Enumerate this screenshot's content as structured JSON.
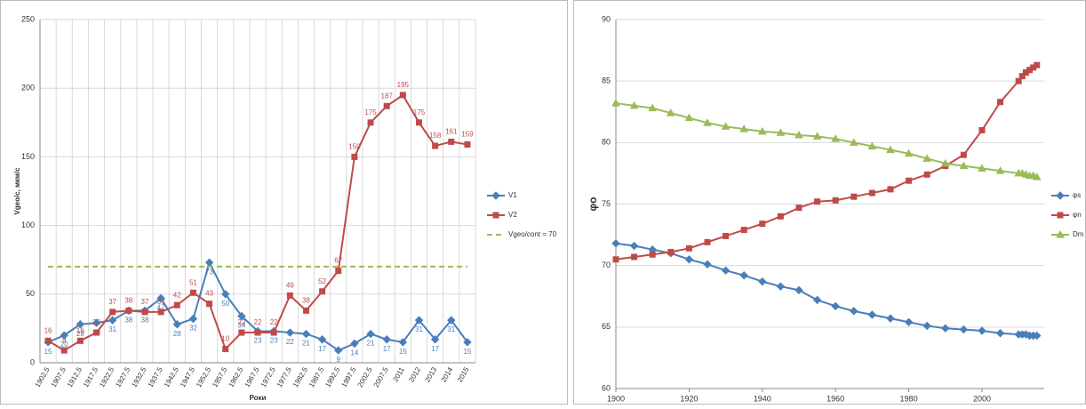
{
  "chart_data": [
    {
      "type": "line",
      "y_label": "Vgeo/c, мкм/с",
      "x_label": "Роки",
      "categories": [
        "1902,5",
        "1907,5",
        "1912,5",
        "1917,5",
        "1922,5",
        "1927,5",
        "1932,5",
        "1937,5",
        "1942,5",
        "1947,5",
        "1952,5",
        "1957,5",
        "1962,5",
        "1967,5",
        "1972,5",
        "1977,5",
        "1982,5",
        "1987,5",
        "1992,5",
        "1997,5",
        "2002,5",
        "2007,5",
        "2011",
        "2012",
        "2013",
        "2014",
        "2015"
      ],
      "ylim": [
        0,
        250
      ],
      "yticks": [
        0,
        50,
        100,
        150,
        200,
        250
      ],
      "grid": true,
      "legend": "right",
      "series": [
        {
          "name": "V1",
          "color": "#4a7ebb",
          "marker": "diamond",
          "data_labels": true,
          "values": [
            15,
            20,
            28,
            29,
            31,
            38,
            38,
            47,
            28,
            32,
            73,
            50,
            34,
            23,
            23,
            22,
            21,
            17,
            9,
            14,
            21,
            17,
            15,
            31,
            17,
            31,
            15
          ]
        },
        {
          "name": "V2",
          "color": "#be4b48",
          "marker": "square",
          "data_labels": true,
          "values": [
            16,
            9,
            16,
            22,
            37,
            38,
            37,
            37,
            42,
            51,
            43,
            10,
            22,
            22,
            22,
            49,
            38,
            52,
            67,
            150,
            175,
            187,
            195,
            175,
            158,
            161,
            159
          ]
        },
        {
          "name": "Vgeo/cont = 70",
          "color": "#9bbb59",
          "dashed": true,
          "values": [
            70,
            70,
            70,
            70,
            70,
            70,
            70,
            70,
            70,
            70,
            70,
            70,
            70,
            70,
            70,
            70,
            70,
            70,
            70,
            70,
            70,
            70,
            70,
            70,
            70,
            70,
            70
          ]
        }
      ]
    },
    {
      "type": "scatter-line",
      "y_label": "φo",
      "x": [
        1900,
        1905,
        1910,
        1915,
        1920,
        1925,
        1930,
        1935,
        1940,
        1945,
        1950,
        1955,
        1960,
        1965,
        1970,
        1975,
        1980,
        1985,
        1990,
        1995,
        2000,
        2005,
        2010,
        2011,
        2012,
        2013,
        2014,
        2015
      ],
      "xlim": [
        1900,
        2017
      ],
      "xticks": [
        1900,
        1920,
        1940,
        1960,
        1980,
        2000
      ],
      "ylim": [
        60,
        90
      ],
      "yticks": [
        60,
        65,
        70,
        75,
        80,
        85,
        90
      ],
      "grid": true,
      "legend": "right",
      "series": [
        {
          "name": "φs",
          "color": "#4a7ebb",
          "marker": "diamond",
          "values": [
            71.8,
            71.6,
            71.3,
            71.0,
            70.5,
            70.1,
            69.6,
            69.2,
            68.7,
            68.3,
            68.0,
            67.2,
            66.7,
            66.3,
            66.0,
            65.7,
            65.4,
            65.1,
            64.9,
            64.8,
            64.7,
            64.5,
            64.4,
            64.4,
            64.4,
            64.3,
            64.3,
            64.3
          ]
        },
        {
          "name": "φn",
          "color": "#be4b48",
          "marker": "square",
          "values": [
            70.5,
            70.7,
            70.9,
            71.1,
            71.4,
            71.9,
            72.4,
            72.9,
            73.4,
            74.0,
            74.7,
            75.2,
            75.3,
            75.6,
            75.9,
            76.2,
            76.9,
            77.4,
            78.1,
            79.0,
            81.0,
            83.3,
            85.0,
            85.4,
            85.7,
            85.9,
            86.1,
            86.3
          ]
        },
        {
          "name": "Dm",
          "color": "#9bbb59",
          "marker": "triangle",
          "values": [
            83.2,
            83.0,
            82.8,
            82.4,
            82.0,
            81.6,
            81.3,
            81.1,
            80.9,
            80.8,
            80.6,
            80.5,
            80.3,
            80.0,
            79.7,
            79.4,
            79.1,
            78.7,
            78.3,
            78.1,
            77.9,
            77.7,
            77.5,
            77.5,
            77.4,
            77.3,
            77.3,
            77.2
          ]
        }
      ]
    }
  ]
}
